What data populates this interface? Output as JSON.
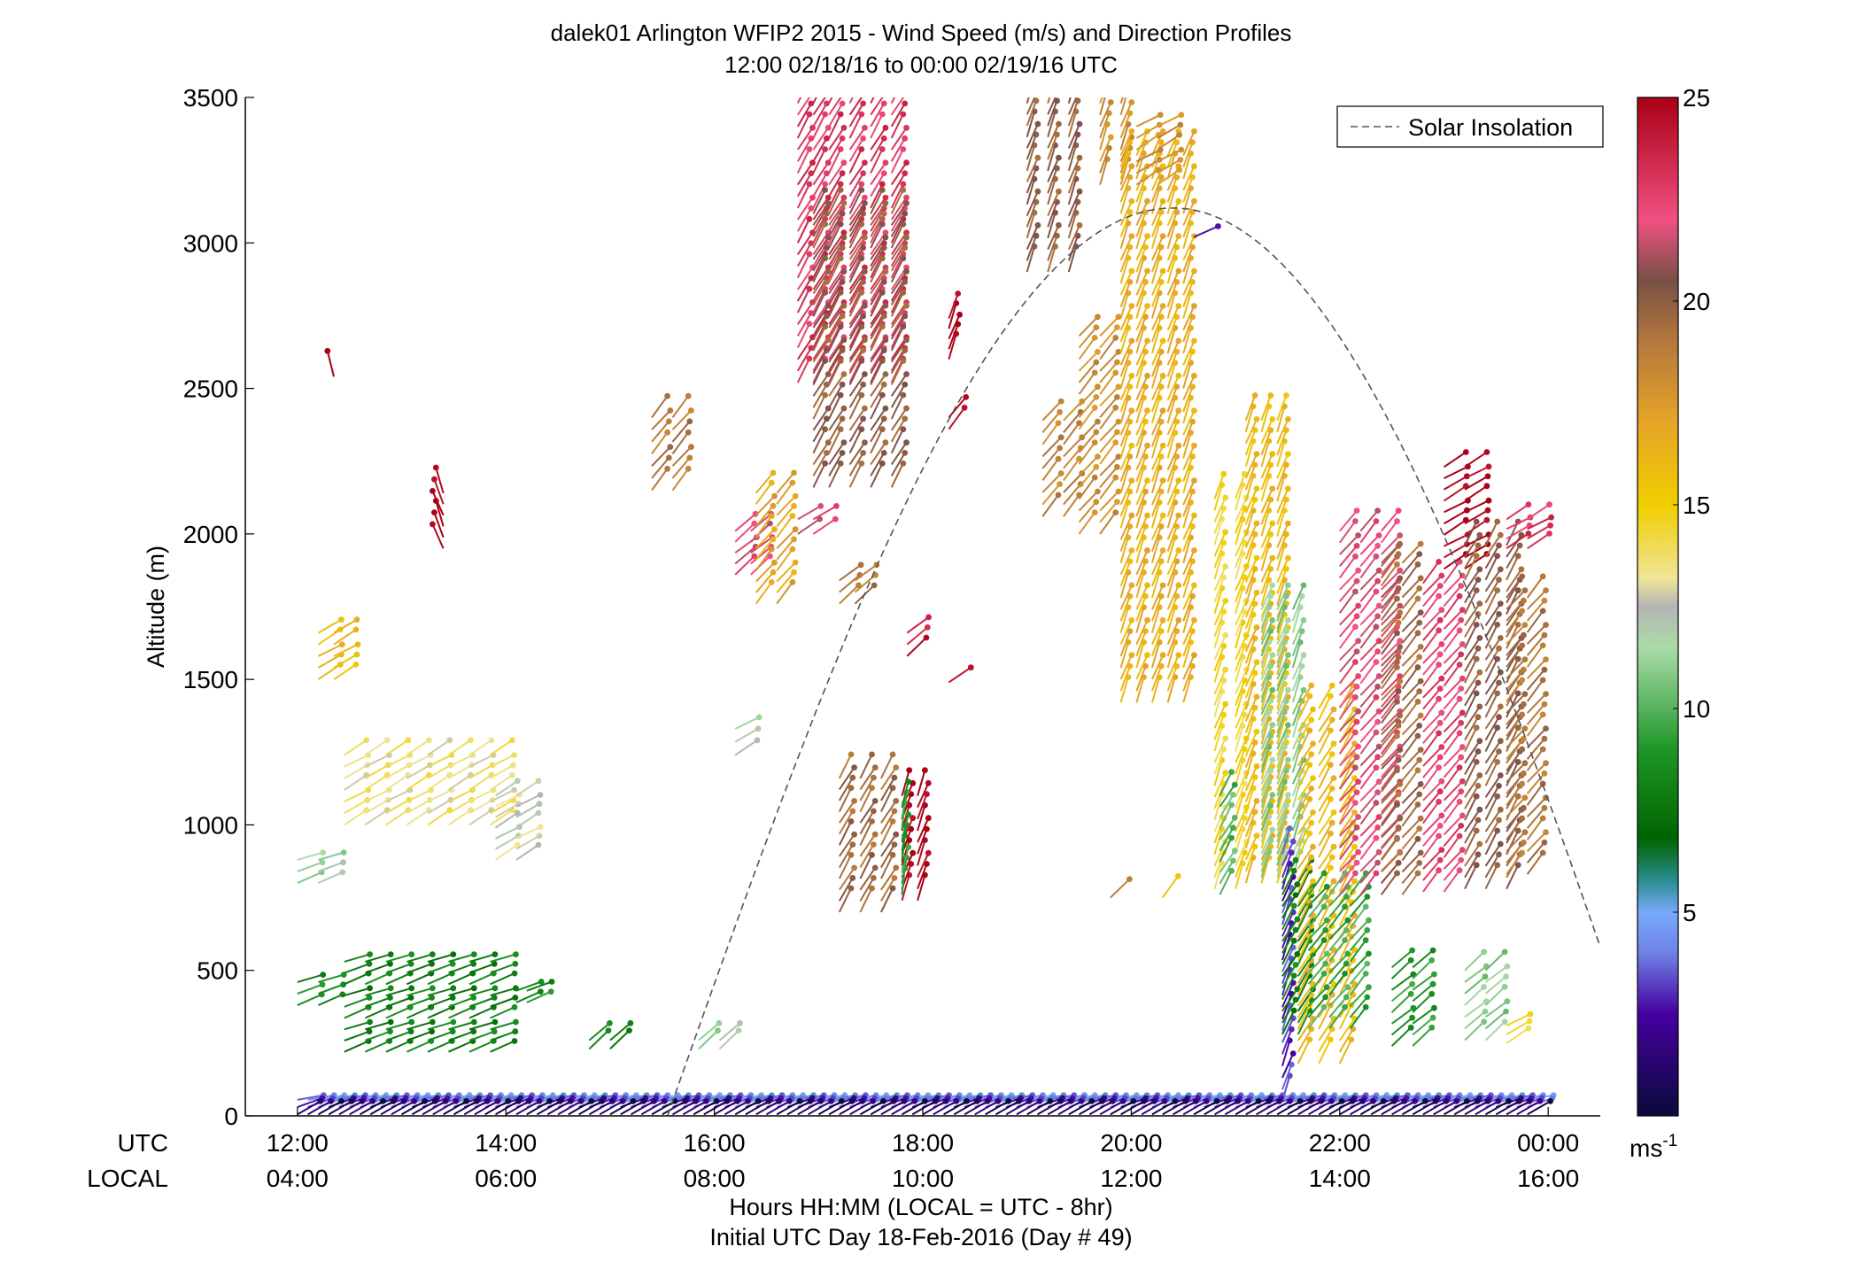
{
  "chart_data": {
    "type": "scatter",
    "title": "dalek01 Arlington WFIP2 2015 - Wind Speed (m/s) and Direction Profiles",
    "subtitle": "12:00 02/18/16 to 00:00 02/19/16  UTC",
    "ylabel": "Altitude (m)",
    "xlabel": "Hours HH:MM  (LOCAL = UTC - 8hr)",
    "xlabel2": "Initial UTC Day 18-Feb-2016 (Day # 49)",
    "xlim": [
      11.5,
      24.5
    ],
    "ylim": [
      0,
      3500
    ],
    "y_ticks": [
      "0",
      "500",
      "1000",
      "1500",
      "2000",
      "2500",
      "3000",
      "3500"
    ],
    "x_tick_hours": [
      12,
      14,
      16,
      18,
      20,
      22,
      24
    ],
    "x_row_labels": [
      "UTC",
      "LOCAL"
    ],
    "utc_ticks": [
      "12:00",
      "14:00",
      "16:00",
      "18:00",
      "20:00",
      "22:00",
      "00:00"
    ],
    "local_ticks": [
      "04:00",
      "06:00",
      "08:00",
      "10:00",
      "12:00",
      "14:00",
      "16:00"
    ],
    "grid": false,
    "legend": {
      "position": "top-right",
      "entries": [
        "Solar Insolation"
      ]
    },
    "colorbar": {
      "min": 0,
      "max": 25,
      "ticks": [
        "5",
        "10",
        "15",
        "20",
        "25"
      ],
      "unit": "ms",
      "unit_exp": "-1"
    },
    "solar_insolation": {
      "start_hour": 15.55,
      "peak_hour": 20.4,
      "peak_altitude": 3120,
      "end_hour": 24.5,
      "end_altitude": 580
    },
    "barb_groups": [
      {
        "times": [
          12.0,
          12.2
        ],
        "alt": [
          800,
          880
        ],
        "speed": 11.5,
        "dir": 250
      },
      {
        "times": [
          12.2,
          12.35
        ],
        "alt": [
          1500,
          1660
        ],
        "speed": 16,
        "dir": 240
      },
      {
        "times": [
          12.35
        ],
        "alt": [
          2540,
          2540
        ],
        "speed": 25,
        "dir": 170
      },
      {
        "times": [
          13.4
        ],
        "alt": [
          1950,
          2140
        ],
        "speed": 25,
        "dir": 160
      },
      {
        "times": [
          12.0,
          12.2
        ],
        "alt": [
          380,
          460
        ],
        "speed": 8.5,
        "dir": 250
      },
      {
        "times": [
          12.45,
          12.65,
          12.85,
          13.05,
          13.25,
          13.45,
          13.65,
          13.85
        ],
        "alt": [
          220,
          530
        ],
        "speed": 8,
        "dir": 250
      },
      {
        "times": [
          12.45,
          12.65,
          12.85,
          13.05,
          13.25,
          13.45,
          13.65,
          13.85
        ],
        "alt": [
          1000,
          1240
        ],
        "speed": 13.5,
        "dir": 240
      },
      {
        "times": [
          13.9,
          14.1
        ],
        "alt": [
          880,
          1100
        ],
        "speed": 12.5,
        "dir": 240
      },
      {
        "times": [
          14.1,
          14.2
        ],
        "alt": [
          390,
          430
        ],
        "speed": 8.5,
        "dir": 250
      },
      {
        "times": [
          14.8,
          15.0
        ],
        "alt": [
          230,
          260
        ],
        "speed": 8,
        "dir": 230
      },
      {
        "times": [
          15.85,
          16.05
        ],
        "alt": [
          230,
          260
        ],
        "speed": 11.5,
        "dir": 230
      },
      {
        "times": [
          15.4,
          15.6
        ],
        "alt": [
          2150,
          2400
        ],
        "speed": 19,
        "dir": 220
      },
      {
        "times": [
          16.2,
          16.35
        ],
        "alt": [
          1860,
          2010
        ],
        "speed": 22,
        "dir": 230
      },
      {
        "times": [
          16.4,
          16.6
        ],
        "alt": [
          1760,
          2140
        ],
        "speed": 17,
        "dir": 220
      },
      {
        "times": [
          16.2
        ],
        "alt": [
          1240,
          1330
        ],
        "speed": 12,
        "dir": 240
      },
      {
        "times": [
          16.8,
          16.95
        ],
        "alt": [
          2000,
          2050
        ],
        "speed": 22,
        "dir": 240
      },
      {
        "times": [
          16.8,
          16.95,
          17.1,
          17.3,
          17.5,
          17.7
        ],
        "alt": [
          2520,
          3480
        ],
        "speed": 23,
        "dir": 210
      },
      {
        "times": [
          16.95,
          17.1,
          17.3,
          17.5,
          17.7
        ],
        "alt": [
          2160,
          3100
        ],
        "speed": 20,
        "dir": 210
      },
      {
        "times": [
          17.2,
          17.35
        ],
        "alt": [
          1760,
          1840
        ],
        "speed": 19,
        "dir": 230
      },
      {
        "times": [
          17.2,
          17.4,
          17.6
        ],
        "alt": [
          700,
          1160
        ],
        "speed": 19.5,
        "dir": 210
      },
      {
        "times": [
          17.8,
          17.95
        ],
        "alt": [
          740,
          1100
        ],
        "speed": 25,
        "dir": 200
      },
      {
        "times": [
          17.8
        ],
        "alt": [
          760,
          1060
        ],
        "speed": 9,
        "dir": 190
      },
      {
        "times": [
          17.85
        ],
        "alt": [
          1580,
          1660
        ],
        "speed": 24,
        "dir": 230
      },
      {
        "times": [
          18.25
        ],
        "alt": [
          2600,
          2740
        ],
        "speed": 25,
        "dir": 200
      },
      {
        "times": [
          18.25
        ],
        "alt": [
          2360,
          2400
        ],
        "speed": 24,
        "dir": 220
      },
      {
        "times": [
          18.25
        ],
        "alt": [
          1490,
          1490
        ],
        "speed": 25,
        "dir": 240
      },
      {
        "times": [
          19.0,
          19.2,
          19.4
        ],
        "alt": [
          2900,
          3480
        ],
        "speed": 20,
        "dir": 200
      },
      {
        "times": [
          19.15,
          19.35
        ],
        "alt": [
          2060,
          2390
        ],
        "speed": 18.5,
        "dir": 220
      },
      {
        "times": [
          19.5,
          19.7
        ],
        "alt": [
          2000,
          2680
        ],
        "speed": 18,
        "dir": 220
      },
      {
        "times": [
          19.7,
          19.9
        ],
        "alt": [
          3200,
          3480
        ],
        "speed": 18,
        "dir": 200
      },
      {
        "times": [
          19.9,
          20.05,
          20.2,
          20.35,
          20.5
        ],
        "alt": [
          1420,
          3300
        ],
        "speed": 16.5,
        "dir": 200
      },
      {
        "times": [
          20.05,
          20.25
        ],
        "alt": [
          3200,
          3400
        ],
        "speed": 18,
        "dir": 240
      },
      {
        "times": [
          20.6
        ],
        "alt": [
          3020,
          3020
        ],
        "speed": 2,
        "dir": 250
      },
      {
        "times": [
          19.8
        ],
        "alt": [
          750,
          750
        ],
        "speed": 19,
        "dir": 230
      },
      {
        "times": [
          20.3
        ],
        "alt": [
          750,
          750
        ],
        "speed": 15,
        "dir": 220
      },
      {
        "times": [
          20.8,
          21.0
        ],
        "alt": [
          780,
          2120
        ],
        "speed": 14.5,
        "dir": 200
      },
      {
        "times": [
          20.85
        ],
        "alt": [
          760,
          1100
        ],
        "speed": 10,
        "dir": 210
      },
      {
        "times": [
          21.1,
          21.25,
          21.4
        ],
        "alt": [
          800,
          2390
        ],
        "speed": 16,
        "dir": 200
      },
      {
        "times": [
          21.25,
          21.4,
          21.55
        ],
        "alt": [
          820,
          1740
        ],
        "speed": 11,
        "dir": 200
      },
      {
        "times": [
          21.45
        ],
        "alt": [
          50,
          900
        ],
        "speed": 3,
        "dir": 200
      },
      {
        "times": [
          21.45,
          21.6
        ],
        "alt": [
          280,
          800
        ],
        "speed": 8,
        "dir": 210
      },
      {
        "times": [
          21.6,
          21.8,
          22.0
        ],
        "alt": [
          180,
          1400
        ],
        "speed": 16,
        "dir": 210
      },
      {
        "times": [
          21.7,
          21.9,
          22.1
        ],
        "alt": [
          300,
          760
        ],
        "speed": 9.5,
        "dir": 220
      },
      {
        "times": [
          22.0,
          22.2,
          22.4
        ],
        "alt": [
          760,
          2010
        ],
        "speed": 22,
        "dir": 220
      },
      {
        "times": [
          22.4,
          22.6
        ],
        "alt": [
          760,
          1900
        ],
        "speed": 19.5,
        "dir": 220
      },
      {
        "times": [
          22.5,
          22.7
        ],
        "alt": [
          240,
          510
        ],
        "speed": 9,
        "dir": 230
      },
      {
        "times": [
          22.8,
          23.0
        ],
        "alt": [
          770,
          1830
        ],
        "speed": 22.5,
        "dir": 220
      },
      {
        "times": [
          23.0,
          23.2
        ],
        "alt": [
          1880,
          2230
        ],
        "speed": 25,
        "dir": 240
      },
      {
        "times": [
          23.2,
          23.4
        ],
        "alt": [
          260,
          500
        ],
        "speed": 11,
        "dir": 230
      },
      {
        "times": [
          23.2,
          23.4,
          23.6
        ],
        "alt": [
          780,
          1960
        ],
        "speed": 20,
        "dir": 210
      },
      {
        "times": [
          23.6,
          23.8
        ],
        "alt": [
          830,
          1780
        ],
        "speed": 19,
        "dir": 220
      },
      {
        "times": [
          23.6
        ],
        "alt": [
          250,
          310
        ],
        "speed": 14,
        "dir": 240
      },
      {
        "times": [
          23.6,
          23.8
        ],
        "alt": [
          1950,
          2050
        ],
        "speed": 23,
        "dir": 240
      }
    ],
    "surface_barbs": {
      "t_start": 12.0,
      "t_end": 23.85,
      "step": 0.1,
      "layers": [
        {
          "alt": 55,
          "speed": 4.5,
          "dir": 260
        },
        {
          "alt": 30,
          "speed": 3,
          "dir": 250
        },
        {
          "alt": 5,
          "speed": 1,
          "dir": 240
        }
      ]
    }
  }
}
